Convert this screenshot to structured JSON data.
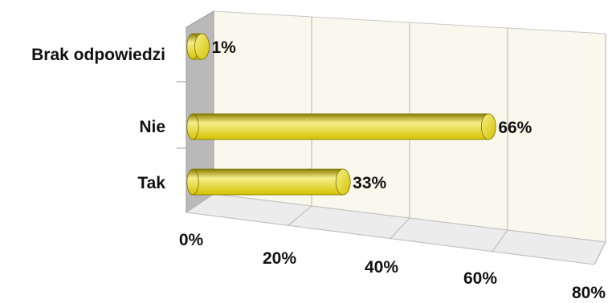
{
  "chart_data": {
    "type": "bar",
    "orientation": "horizontal",
    "three_d": true,
    "categories": [
      "Brak odpowiedzi",
      "Nie",
      "Tak"
    ],
    "values": [
      1,
      66,
      33
    ],
    "data_labels": [
      "1%",
      "66%",
      "33%"
    ],
    "xlim": [
      0,
      80
    ],
    "x_ticks": [
      "0%",
      "20%",
      "40%",
      "60%",
      "80%"
    ],
    "grid": true,
    "bar_color": "#d4c300",
    "bar_highlight": "#f6ee8a",
    "bar_shadow": "#8a7d00",
    "wall_color": "#b9b9b9",
    "back_wall_color": "#faf8ec"
  }
}
